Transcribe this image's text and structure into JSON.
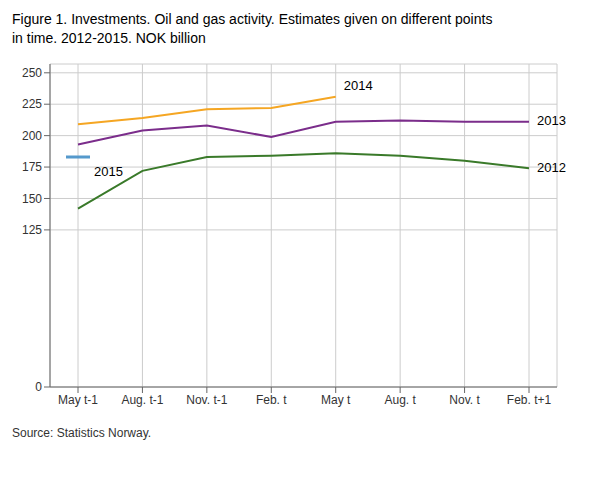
{
  "chart_data": {
    "type": "line",
    "title": "Figure 1. Investments. Oil and gas activity. Estimates given on different points\nin time. 2012-2015. NOK billion",
    "annotations": [
      "Source: Statistics Norway."
    ],
    "categories": [
      "May t-1",
      "Aug. t-1",
      "Nov. t-1",
      "Feb. t",
      "May t",
      "Aug. t",
      "Nov. t",
      "Feb. t+1"
    ],
    "series": [
      {
        "name": "2014",
        "color": "#F5A623",
        "marker": "none",
        "values": [
          209,
          214,
          221,
          222,
          231,
          null,
          null,
          null
        ]
      },
      {
        "name": "2013",
        "color": "#7B2D8B",
        "marker": "none",
        "values": [
          193,
          204,
          208,
          199,
          211,
          212,
          211,
          211
        ]
      },
      {
        "name": "2012",
        "color": "#3A7A2A",
        "marker": "none",
        "values": [
          142,
          172,
          183,
          184,
          186,
          184,
          180,
          174
        ]
      },
      {
        "name": "2015",
        "color": "#5599CC",
        "marker": "dash",
        "values": [
          183,
          null,
          null,
          null,
          null,
          null,
          null,
          null
        ]
      }
    ],
    "ylim": [
      0,
      257
    ],
    "yticks": [
      0,
      125,
      150,
      175,
      200,
      225,
      250
    ],
    "grid": true
  }
}
